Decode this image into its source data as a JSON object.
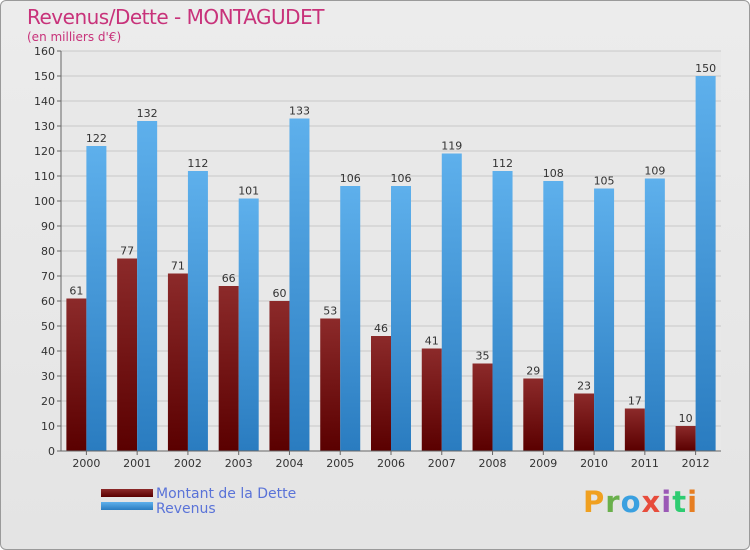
{
  "title": "Revenus/Dette - MONTAGUDET",
  "subtitle": "(en milliers d'€)",
  "logo": {
    "text": "Proxiti",
    "colors": [
      "#f0a020",
      "#6ab04c",
      "#3aa0e0",
      "#e74c3c",
      "#9b59b6",
      "#2ecc71",
      "#e67e22"
    ]
  },
  "chart_data": {
    "type": "bar",
    "title": "Revenus/Dette - MONTAGUDET",
    "ylabel": "(en milliers d'€)",
    "xlabel": "",
    "ylim": [
      0,
      160
    ],
    "ytick_step": 10,
    "grid": true,
    "categories": [
      "2000",
      "2001",
      "2002",
      "2003",
      "2004",
      "2005",
      "2006",
      "2007",
      "2008",
      "2009",
      "2010",
      "2011",
      "2012"
    ],
    "series": [
      {
        "name": "Montant de la Dette",
        "color": "#7a1414",
        "values": [
          61,
          77,
          71,
          66,
          60,
          53,
          46,
          41,
          35,
          29,
          23,
          17,
          10
        ]
      },
      {
        "name": "Revenus",
        "color": "#3d98dc",
        "values": [
          122,
          132,
          112,
          101,
          133,
          106,
          106,
          119,
          112,
          108,
          105,
          109,
          150
        ]
      }
    ]
  }
}
